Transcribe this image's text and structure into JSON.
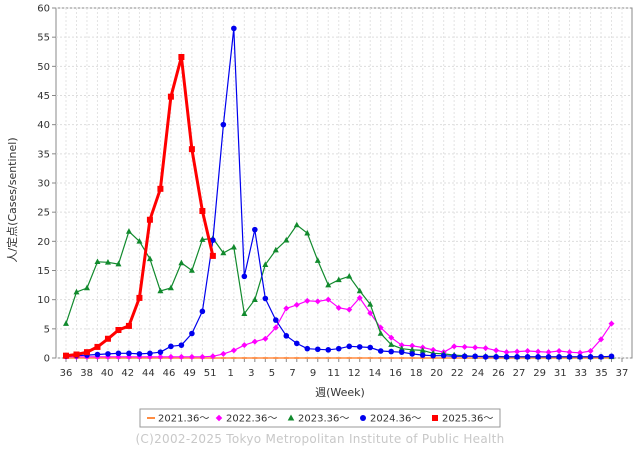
{
  "chart_data": {
    "type": "line",
    "title": "",
    "ylabel": "人/定点(Cases/sentinel)",
    "xlabel": "週(Week)",
    "ylim": [
      0,
      60
    ],
    "yticks": [
      0,
      5,
      10,
      15,
      20,
      25,
      30,
      35,
      40,
      45,
      50,
      55,
      60
    ],
    "xticks": [
      "36",
      "38",
      "40",
      "42",
      "44",
      "46",
      "49",
      "51",
      "1",
      "3",
      "5",
      "7",
      "9",
      "11",
      "12",
      "14",
      "16",
      "18",
      "20",
      "22",
      "24",
      "26",
      "27",
      "29",
      "31",
      "33",
      "35",
      "37"
    ],
    "grid": true,
    "legend_position": "bottom",
    "series": [
      {
        "name": "2021.36～",
        "color": "#ff8c42",
        "marker": "dash",
        "values": [
          0,
          0,
          0,
          0,
          0,
          0,
          0,
          0,
          0,
          0,
          0,
          0,
          0,
          0,
          0,
          0,
          0,
          0,
          0,
          0,
          0,
          0,
          0,
          0,
          0,
          0,
          0,
          0,
          0,
          0,
          0,
          0,
          0,
          0,
          0,
          0,
          0,
          0,
          0,
          0,
          0,
          0,
          0,
          0,
          0,
          0,
          0,
          0,
          0,
          0,
          0,
          0,
          0
        ]
      },
      {
        "name": "2022.36～",
        "color": "#ff00ff",
        "marker": "diamond",
        "values": [
          0.2,
          0.2,
          0.2,
          0.2,
          0.2,
          0.2,
          0.2,
          0.2,
          0.2,
          0.2,
          0.2,
          0.2,
          0.2,
          0.2,
          0.3,
          0.7,
          1.3,
          2.2,
          2.8,
          3.3,
          5.2,
          8.5,
          9.1,
          9.8,
          9.7,
          10,
          8.6,
          8.3,
          10.3,
          7.7,
          5.2,
          3.5,
          2.2,
          2.1,
          1.8,
          1.4,
          1,
          2,
          1.9,
          1.8,
          1.7,
          1.3,
          1,
          1.1,
          1.2,
          1.1,
          1,
          1.2,
          1,
          0.9,
          1.2,
          3.2,
          5.9
        ]
      },
      {
        "name": "2023.36～",
        "color": "#118a2d",
        "marker": "triangle",
        "values": [
          5.9,
          11.3,
          12,
          16.5,
          16.4,
          16.1,
          21.7,
          20,
          17,
          11.5,
          12,
          16.3,
          15,
          20.3,
          20.5,
          18,
          19,
          7.6,
          10,
          16,
          18.5,
          20.2,
          22.8,
          21.4,
          16.7,
          12.5,
          13.4,
          14,
          11.5,
          9.2,
          4.2,
          2.3,
          1.6,
          1.4,
          1.3,
          0.8,
          0.7,
          0.5,
          0.4,
          0.3,
          0.3,
          0.3,
          0.2,
          0.2,
          0.2,
          0.2,
          0.2,
          0.2,
          0.2,
          0.2,
          0.2,
          0.2,
          0.2
        ]
      },
      {
        "name": "2024.36～",
        "color": "#0000ee",
        "marker": "circle",
        "values": [
          0.3,
          0.4,
          0.5,
          0.6,
          0.7,
          0.8,
          0.8,
          0.7,
          0.8,
          1,
          2,
          2.2,
          4.2,
          8,
          20.2,
          40,
          56.5,
          14,
          22,
          10.2,
          6.5,
          3.8,
          2.5,
          1.6,
          1.5,
          1.4,
          1.6,
          2,
          1.9,
          1.8,
          1.2,
          1.1,
          1,
          0.7,
          0.5,
          0.4,
          0.4,
          0.3,
          0.3,
          0.3,
          0.2,
          0.2,
          0.2,
          0.2,
          0.2,
          0.2,
          0.2,
          0.2,
          0.2,
          0.2,
          0.2,
          0.2,
          0.3
        ]
      },
      {
        "name": "2025.36～",
        "color": "#ff0000",
        "marker": "square",
        "values": [
          0.4,
          0.6,
          1,
          1.9,
          3.3,
          4.8,
          5.5,
          10.3,
          23.7,
          29,
          44.8,
          51.6,
          35.8,
          25.2,
          17.5
        ]
      }
    ]
  },
  "credit": "(C)2002-2025 Tokyo Metropolitan Institute of Public Health"
}
